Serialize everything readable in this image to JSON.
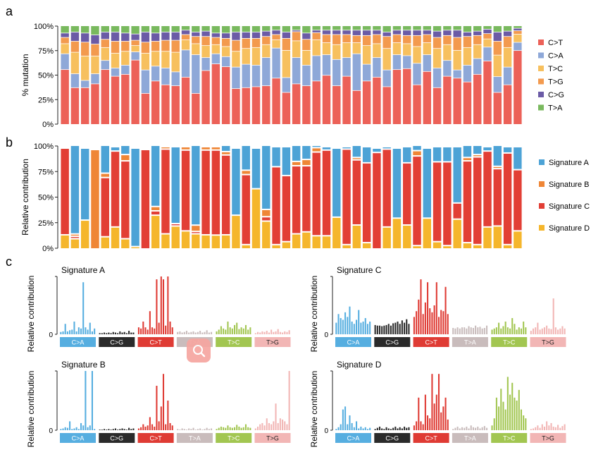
{
  "panel_labels": {
    "a": "a",
    "b": "b",
    "c": "c"
  },
  "colors": {
    "CtoT": "#ec6158",
    "CtoA": "#8ea8d8",
    "TtoC": "#f7c05e",
    "TtoG": "#f39a4e",
    "CtoG": "#6b5ba6",
    "TtoA": "#79b95e",
    "sigA": "#4da3d6",
    "sigB": "#ef8636",
    "sigC": "#e23f35",
    "sigD": "#f5b62c",
    "band_CA": "#56aee0",
    "band_CG": "#2a2a2a",
    "band_CT": "#df3b34",
    "band_TA": "#c9bcbc",
    "band_TC": "#a2c651",
    "band_TG": "#f2b6b5"
  },
  "zoom_button": {
    "icon": "magnifier-icon"
  },
  "chart_data": [
    {
      "type": "bar",
      "stacked": true,
      "ylabel": "% mutation",
      "yticks": [
        "0%",
        "25%",
        "50%",
        "75%",
        "100%"
      ],
      "ylim": [
        0,
        100
      ],
      "legend_position": "right",
      "series": [
        {
          "name": "C>T",
          "color": "#ec6158",
          "values": [
            57,
            38,
            38,
            42,
            57,
            50,
            52,
            67,
            32,
            45,
            41,
            40,
            49,
            32,
            56,
            63,
            60,
            37,
            38,
            39,
            40,
            48,
            33,
            42,
            40,
            45,
            51,
            40,
            50,
            35,
            45,
            49,
            39,
            57,
            58,
            41,
            55,
            38,
            50,
            48,
            44,
            52,
            66,
            33,
            41,
            77
          ]
        },
        {
          "name": "C>A",
          "color": "#8ea8d8",
          "values": [
            16,
            14,
            7,
            10,
            9,
            8,
            9,
            8,
            24,
            15,
            17,
            14,
            28,
            40,
            13,
            10,
            10,
            22,
            24,
            22,
            29,
            31,
            15,
            27,
            21,
            26,
            21,
            27,
            19,
            38,
            17,
            20,
            17,
            15,
            13,
            22,
            17,
            20,
            16,
            8,
            17,
            16,
            14,
            16,
            18,
            8
          ]
        },
        {
          "name": "T>C",
          "color": "#f7c05e",
          "values": [
            10,
            22,
            25,
            18,
            13,
            15,
            14,
            6,
            17,
            15,
            17,
            20,
            10,
            11,
            12,
            9,
            10,
            16,
            16,
            18,
            13,
            8,
            28,
            17,
            15,
            16,
            12,
            15,
            15,
            11,
            19,
            14,
            22,
            12,
            12,
            17,
            12,
            20,
            16,
            20,
            18,
            14,
            8,
            22,
            20,
            8
          ]
        },
        {
          "name": "T>G",
          "color": "#f39a4e",
          "values": [
            6,
            11,
            14,
            12,
            8,
            12,
            10,
            5,
            11,
            10,
            11,
            12,
            5,
            7,
            9,
            7,
            8,
            11,
            10,
            9,
            8,
            5,
            12,
            9,
            11,
            7,
            8,
            10,
            8,
            7,
            10,
            9,
            12,
            8,
            8,
            11,
            8,
            11,
            9,
            13,
            11,
            9,
            5,
            14,
            11,
            3
          ]
        },
        {
          "name": "C>G",
          "color": "#6b5ba6",
          "values": [
            4,
            9,
            9,
            9,
            7,
            9,
            8,
            6,
            10,
            8,
            8,
            8,
            4,
            4,
            5,
            4,
            5,
            8,
            6,
            6,
            5,
            4,
            6,
            1,
            6,
            2,
            4,
            4,
            4,
            5,
            5,
            4,
            4,
            4,
            5,
            5,
            4,
            6,
            5,
            7,
            4,
            4,
            4,
            9,
            5,
            2
          ]
        },
        {
          "name": "T>A",
          "color": "#79b95e",
          "values": [
            7,
            6,
            7,
            9,
            6,
            6,
            7,
            8,
            6,
            7,
            6,
            6,
            4,
            6,
            5,
            7,
            7,
            6,
            6,
            6,
            5,
            4,
            6,
            4,
            7,
            4,
            4,
            4,
            4,
            4,
            4,
            4,
            6,
            4,
            4,
            4,
            4,
            5,
            4,
            4,
            6,
            5,
            3,
            6,
            5,
            2
          ]
        }
      ]
    },
    {
      "type": "bar",
      "stacked": true,
      "ylabel": "Relative contribution",
      "yticks": [
        "0%",
        "25%",
        "50%",
        "75%",
        "100%"
      ],
      "ylim": [
        0,
        100
      ],
      "legend_position": "right",
      "series": [
        {
          "name": "Signature D",
          "color": "#f5b62c",
          "values": [
            13,
            9,
            28,
            0,
            11,
            21,
            9,
            1,
            0,
            33,
            14,
            22,
            17,
            14,
            13,
            13,
            13,
            33,
            3,
            60,
            27,
            3,
            6,
            14,
            16,
            12,
            12,
            31,
            3,
            23,
            5,
            0,
            21,
            30,
            23,
            2,
            30,
            6,
            2,
            29,
            5,
            3,
            21,
            22,
            3,
            17
          ]
        },
        {
          "name": "Signature C",
          "color": "#e23f35",
          "values": [
            87,
            1,
            0,
            0,
            59,
            76,
            78,
            0,
            100,
            3,
            85,
            1,
            81,
            1,
            85,
            87,
            80,
            0,
            70,
            0,
            3,
            78,
            66,
            68,
            66,
            84,
            86,
            0,
            96,
            65,
            80,
            97,
            78,
            0,
            62,
            90,
            0,
            80,
            84,
            15,
            82,
            88,
            76,
            57,
            92,
            61
          ]
        },
        {
          "name": "Signature B",
          "color": "#ef8636",
          "values": [
            0,
            1,
            0,
            100,
            3,
            0,
            5,
            0,
            0,
            3,
            1,
            0,
            2,
            5,
            2,
            2,
            2,
            0,
            3,
            0,
            6,
            0,
            0,
            3,
            5,
            3,
            0,
            0,
            0,
            1,
            0,
            0,
            0,
            0,
            0,
            4,
            0,
            0,
            0,
            0,
            2,
            1,
            0,
            1,
            0,
            0
          ]
        },
        {
          "name": "Signature A",
          "color": "#4da3d6",
          "values": [
            0,
            89,
            72,
            0,
            27,
            3,
            8,
            99,
            0,
            61,
            0,
            77,
            0,
            80,
            0,
            0,
            5,
            67,
            24,
            40,
            64,
            19,
            28,
            15,
            13,
            1,
            2,
            69,
            1,
            11,
            15,
            3,
            1,
            70,
            15,
            4,
            70,
            14,
            14,
            56,
            11,
            8,
            3,
            20,
            5,
            22
          ]
        }
      ]
    },
    {
      "type": "bar",
      "title": "Signature A",
      "ylabel": "Relative contribution",
      "ytick": "0",
      "groups": [
        "C>A",
        "C>G",
        "C>T",
        "T>A",
        "T>C",
        "T>G"
      ],
      "values": [
        [
          0.04,
          0.05,
          0.18,
          0.05,
          0.07,
          0.08,
          0.22,
          0.05,
          0.12,
          0.1,
          0.9,
          0.12,
          0.08,
          0.2,
          0.05,
          0.1
        ],
        [
          0.02,
          0.02,
          0.03,
          0.02,
          0.03,
          0.02,
          0.04,
          0.03,
          0.02,
          0.05,
          0.03,
          0.04,
          0.02,
          0.06,
          0.03,
          0.03
        ],
        [
          0.12,
          0.1,
          0.22,
          0.12,
          0.08,
          0.4,
          0.12,
          0.1,
          0.95,
          0.2,
          1.0,
          0.95,
          0.15,
          1.0,
          0.22,
          0.12
        ],
        [
          0.04,
          0.05,
          0.03,
          0.04,
          0.06,
          0.03,
          0.04,
          0.05,
          0.03,
          0.04,
          0.06,
          0.03,
          0.04,
          0.07,
          0.03,
          0.04
        ],
        [
          0.05,
          0.08,
          0.14,
          0.1,
          0.08,
          0.22,
          0.12,
          0.1,
          0.16,
          0.2,
          0.09,
          0.12,
          0.1,
          0.16,
          0.08,
          0.12
        ],
        [
          0.02,
          0.04,
          0.03,
          0.05,
          0.04,
          0.06,
          0.03,
          0.08,
          0.04,
          0.05,
          0.09,
          0.04,
          0.03,
          0.05,
          0.04,
          0.07
        ]
      ]
    },
    {
      "type": "bar",
      "title": "Signature C",
      "ylabel": "Relative contribution",
      "ytick": "0",
      "groups": [
        "C>A",
        "C>G",
        "C>T",
        "T>A",
        "T>C",
        "T>G"
      ],
      "values": [
        [
          0.2,
          0.35,
          0.28,
          0.25,
          0.38,
          0.3,
          0.48,
          0.22,
          0.18,
          0.25,
          0.42,
          0.2,
          0.22,
          0.28,
          0.18,
          0.22
        ],
        [
          0.16,
          0.15,
          0.15,
          0.14,
          0.15,
          0.16,
          0.18,
          0.15,
          0.19,
          0.2,
          0.22,
          0.18,
          0.24,
          0.2,
          0.26,
          0.18
        ],
        [
          0.3,
          0.4,
          0.6,
          0.95,
          0.35,
          0.55,
          0.9,
          0.45,
          0.38,
          0.5,
          0.9,
          0.3,
          0.42,
          0.4,
          0.82,
          0.35
        ],
        [
          0.11,
          0.1,
          0.12,
          0.1,
          0.12,
          0.12,
          0.1,
          0.14,
          0.12,
          0.11,
          0.15,
          0.12,
          0.13,
          0.1,
          0.11,
          0.15
        ],
        [
          0.08,
          0.1,
          0.12,
          0.2,
          0.1,
          0.14,
          0.22,
          0.12,
          0.1,
          0.28,
          0.18,
          0.08,
          0.12,
          0.1,
          0.22,
          0.12
        ],
        [
          0.06,
          0.1,
          0.12,
          0.2,
          0.08,
          0.1,
          0.12,
          0.15,
          0.1,
          0.09,
          0.62,
          0.12,
          0.08,
          0.1,
          0.14,
          0.1
        ]
      ]
    },
    {
      "type": "bar",
      "title": "Signature B",
      "ylabel": "Relative contribution",
      "ytick": "0",
      "groups": [
        "C>A",
        "C>G",
        "C>T",
        "T>A",
        "T>C",
        "T>G"
      ],
      "values": [
        [
          0.02,
          0.03,
          0.05,
          0.04,
          0.15,
          0.02,
          0.03,
          0.05,
          0.02,
          0.12,
          0.08,
          1.0,
          0.05,
          0.08,
          1.0,
          0.02
        ],
        [
          0.01,
          0.01,
          0.02,
          0.01,
          0.02,
          0.01,
          0.02,
          0.03,
          0.01,
          0.02,
          0.03,
          0.02,
          0.01,
          0.04,
          0.02,
          0.03
        ],
        [
          0.03,
          0.05,
          0.1,
          0.06,
          0.08,
          0.22,
          0.1,
          0.06,
          0.75,
          0.15,
          0.4,
          0.95,
          0.1,
          0.5,
          0.12,
          0.08
        ],
        [
          0.02,
          0.01,
          0.03,
          0.02,
          0.01,
          0.03,
          0.02,
          0.04,
          0.01,
          0.02,
          0.03,
          0.01,
          0.02,
          0.04,
          0.02,
          0.03
        ],
        [
          0.02,
          0.04,
          0.06,
          0.05,
          0.04,
          0.08,
          0.05,
          0.04,
          0.05,
          0.09,
          0.06,
          0.04,
          0.05,
          0.1,
          0.05,
          0.04
        ],
        [
          0.03,
          0.06,
          0.1,
          0.12,
          0.08,
          0.2,
          0.12,
          0.1,
          0.15,
          0.45,
          0.12,
          0.2,
          0.18,
          0.15,
          0.1,
          1.0
        ]
      ]
    },
    {
      "type": "bar",
      "title": "Signature D",
      "ylabel": "Relative contribution",
      "ytick": "0",
      "groups": [
        "C>A",
        "C>G",
        "C>T",
        "T>A",
        "T>C",
        "T>G"
      ],
      "values": [
        [
          0.02,
          0.05,
          0.1,
          0.35,
          0.4,
          0.1,
          0.25,
          0.12,
          0.05,
          0.15,
          0.03,
          0.06,
          0.03,
          0.05,
          0.02,
          0.04
        ],
        [
          0.02,
          0.04,
          0.06,
          0.03,
          0.02,
          0.05,
          0.03,
          0.02,
          0.04,
          0.06,
          0.03,
          0.05,
          0.03,
          0.06,
          0.04,
          0.05
        ],
        [
          0.08,
          0.15,
          0.55,
          0.15,
          0.1,
          0.6,
          0.25,
          0.2,
          0.95,
          0.45,
          0.6,
          0.95,
          0.3,
          0.4,
          0.55,
          0.18
        ],
        [
          0.02,
          0.04,
          0.06,
          0.03,
          0.05,
          0.04,
          0.06,
          0.03,
          0.08,
          0.05,
          0.04,
          0.06,
          0.03,
          0.05,
          0.07,
          0.04
        ],
        [
          0.08,
          0.2,
          0.55,
          0.4,
          0.7,
          0.48,
          0.35,
          0.9,
          0.6,
          0.8,
          0.55,
          0.5,
          0.68,
          0.35,
          0.25,
          0.2
        ],
        [
          0.02,
          0.03,
          0.05,
          0.08,
          0.04,
          0.1,
          0.06,
          0.15,
          0.08,
          0.12,
          0.06,
          0.05,
          0.09,
          0.04,
          0.07,
          0.1
        ]
      ]
    }
  ]
}
